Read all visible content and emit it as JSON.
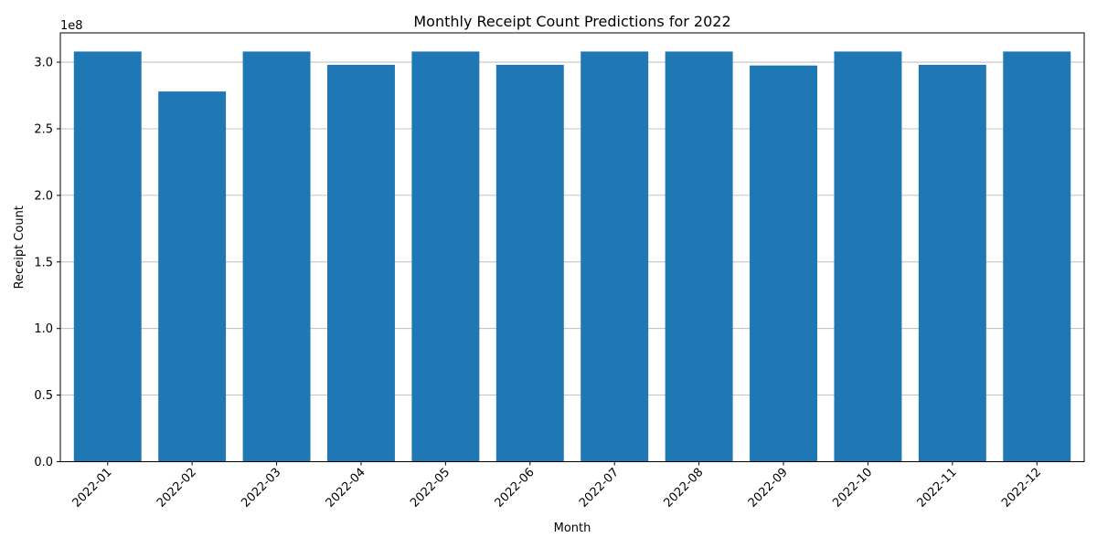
{
  "chart_data": {
    "type": "bar",
    "title": "Monthly Receipt Count Predictions for 2022",
    "xlabel": "Month",
    "ylabel": "Receipt Count",
    "y_offset_label": "1e8",
    "y_scale": 100000000,
    "ylim": [
      0,
      322000000
    ],
    "yticks": [
      0,
      50000000,
      100000000,
      150000000,
      200000000,
      250000000,
      300000000
    ],
    "ytick_labels": [
      "0.0",
      "0.5",
      "1.0",
      "1.5",
      "2.0",
      "2.5",
      "3.0"
    ],
    "grid": "y-major",
    "bar_color": "#1f77b4",
    "categories": [
      "2022-01",
      "2022-02",
      "2022-03",
      "2022-04",
      "2022-05",
      "2022-06",
      "2022-07",
      "2022-08",
      "2022-09",
      "2022-10",
      "2022-11",
      "2022-12"
    ],
    "values": [
      308000000,
      278000000,
      308000000,
      298000000,
      308000000,
      298000000,
      308000000,
      308000000,
      297500000,
      308000000,
      298000000,
      308000000
    ]
  }
}
